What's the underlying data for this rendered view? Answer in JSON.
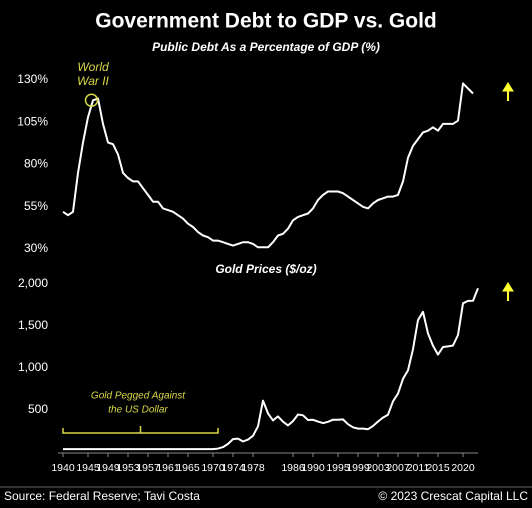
{
  "chart_data": [
    {
      "type": "line",
      "title": "Government Debt to GDP vs. Gold",
      "subtitle": "Public Debt As a Percentage of GDP (%)",
      "x": [
        1940,
        1941,
        1942,
        1943,
        1944,
        1945,
        1946,
        1947,
        1948,
        1949,
        1950,
        1951,
        1952,
        1953,
        1954,
        1955,
        1956,
        1957,
        1958,
        1959,
        1960,
        1961,
        1962,
        1963,
        1964,
        1965,
        1966,
        1967,
        1968,
        1969,
        1970,
        1971,
        1972,
        1973,
        1974,
        1975,
        1976,
        1977,
        1978,
        1979,
        1980,
        1981,
        1982,
        1983,
        1984,
        1985,
        1986,
        1987,
        1988,
        1989,
        1990,
        1991,
        1992,
        1993,
        1994,
        1995,
        1996,
        1997,
        1998,
        1999,
        2000,
        2001,
        2002,
        2003,
        2004,
        2005,
        2006,
        2007,
        2008,
        2009,
        2010,
        2011,
        2012,
        2013,
        2014,
        2015,
        2016,
        2017,
        2018,
        2019,
        2020,
        2021,
        2022
      ],
      "series": [
        {
          "name": "Public Debt",
          "color": "#ffffff",
          "values": [
            52,
            50,
            52,
            75,
            93,
            108,
            118,
            119,
            104,
            93,
            92,
            86,
            75,
            72,
            70,
            70,
            66,
            62,
            58,
            58,
            54,
            53,
            52,
            50,
            48,
            45,
            43,
            40,
            38,
            37,
            35,
            35,
            34,
            33,
            32,
            33,
            34,
            34,
            33,
            31,
            31,
            31,
            34,
            38,
            39,
            42,
            47,
            49,
            50,
            51,
            54,
            59,
            62,
            64,
            64,
            64,
            63,
            61,
            59,
            57,
            55,
            54,
            57,
            59,
            60,
            61,
            61,
            62,
            70,
            84,
            91,
            95,
            99,
            100,
            102,
            100,
            104,
            104,
            104,
            106,
            128,
            125,
            122
          ]
        }
      ],
      "xlim": [
        1939,
        2023
      ],
      "ylim": [
        30,
        130
      ],
      "yticks": [
        {
          "value": 30,
          "label": "30%"
        },
        {
          "value": 55,
          "label": "55%"
        },
        {
          "value": 80,
          "label": "80%"
        },
        {
          "value": 105,
          "label": "105%"
        },
        {
          "value": 130,
          "label": "130%"
        }
      ],
      "annotations": [
        {
          "text": [
            "World",
            "War II"
          ],
          "x": 1946,
          "color": "#d8d84a"
        }
      ]
    },
    {
      "type": "line",
      "title": "Gold Prices ($/oz)",
      "x": [
        1940,
        1970,
        1971,
        1972,
        1973,
        1974,
        1975,
        1976,
        1977,
        1978,
        1979,
        1980,
        1981,
        1982,
        1983,
        1984,
        1985,
        1986,
        1987,
        1988,
        1989,
        1990,
        1991,
        1992,
        1993,
        1994,
        1995,
        1996,
        1997,
        1998,
        1999,
        2000,
        2001,
        2002,
        2003,
        2004,
        2005,
        2006,
        2007,
        2008,
        2009,
        2010,
        2011,
        2012,
        2013,
        2014,
        2015,
        2016,
        2017,
        2018,
        2019,
        2020,
        2021,
        2022,
        2023
      ],
      "series": [
        {
          "name": "Gold",
          "color": "#ffffff",
          "values": [
            35,
            35,
            41,
            58,
            97,
            154,
            160,
            125,
            148,
            193,
            306,
            612,
            460,
            376,
            424,
            361,
            317,
            368,
            447,
            437,
            381,
            383,
            362,
            344,
            360,
            384,
            384,
            388,
            331,
            294,
            279,
            279,
            271,
            310,
            363,
            409,
            444,
            603,
            695,
            872,
            972,
            1224,
            1571,
            1669,
            1411,
            1266,
            1160,
            1250,
            1257,
            1268,
            1393,
            1770,
            1799,
            1800,
            1950
          ]
        }
      ],
      "xlim": [
        1939,
        2023
      ],
      "ylim": [
        0,
        2000
      ],
      "yticks": [
        500,
        {
          "value": 1000,
          "label": "1,000"
        },
        {
          "value": 1500,
          "label": "1,500"
        },
        {
          "value": 2000,
          "label": "2,000"
        }
      ],
      "xticks": [
        1940,
        1945,
        1949,
        1953,
        1957,
        1961,
        1965,
        1970,
        1974,
        1978,
        1986,
        1990,
        1995,
        1999,
        2003,
        2007,
        2011,
        2015,
        2020
      ],
      "annotations": [
        {
          "text": [
            "Gold Pegged Against",
            "the US Dollar"
          ],
          "x": 1955,
          "color": "#d8d84a"
        }
      ]
    }
  ],
  "footer": {
    "source": "Source: Federal Reserve; Tavi Costa",
    "credit": "© 2023 Crescat Capital LLC"
  }
}
